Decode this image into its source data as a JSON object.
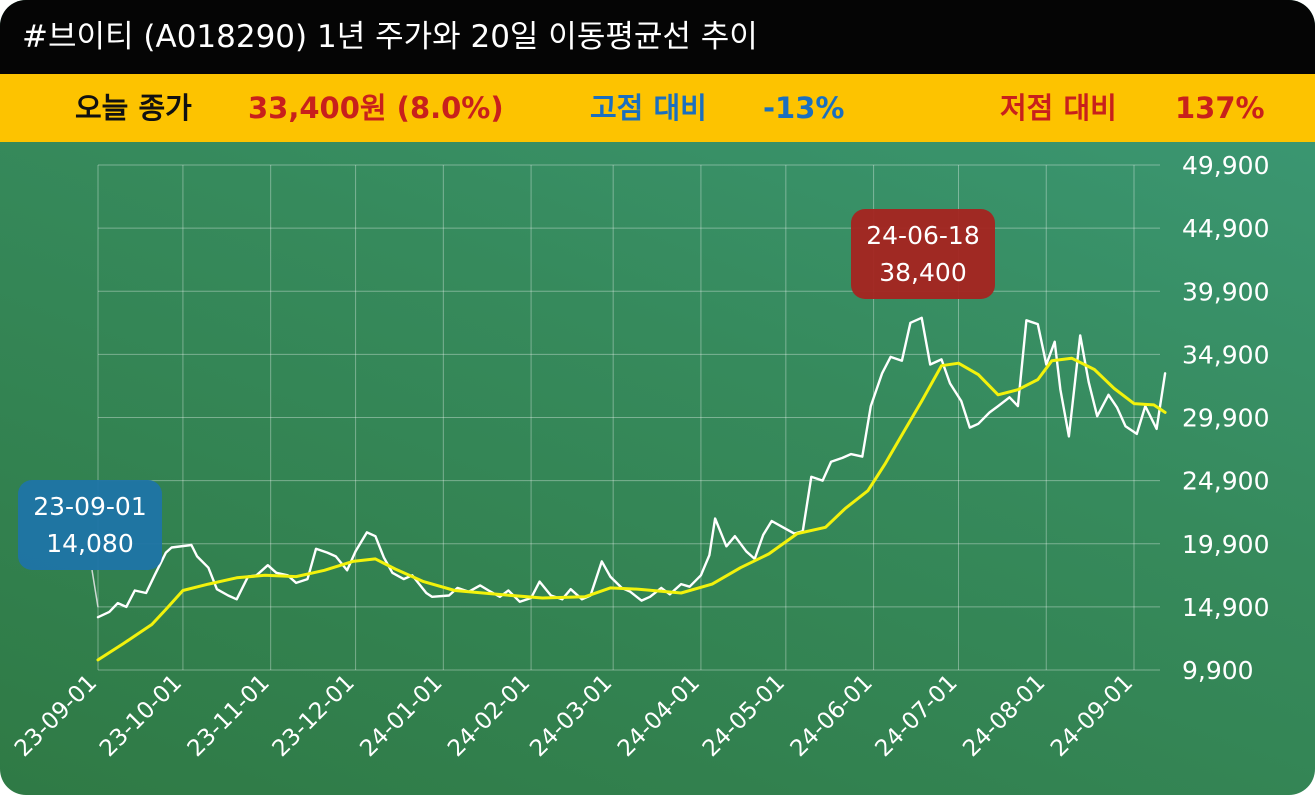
{
  "header": {
    "title": "#브이티 (A018290) 1년 주가와 20일 이동평균선 추이"
  },
  "summary": {
    "close_label": "오늘 종가",
    "close_value": "33,400원 (8.0%)",
    "high_label": "고점 대비",
    "high_value": "-13%",
    "low_label": "저점 대비",
    "low_value": "137%"
  },
  "colors": {
    "title_bg": "#050505",
    "info_bg": "#fdc300",
    "close_value": "#c8201c",
    "high": "#1a6fbf",
    "low": "#c8201c",
    "price_line": "#ffffff",
    "ma_line": "#f2f20c",
    "low_callout": "#1f74a6",
    "high_callout": "#a52420"
  },
  "chart_data": {
    "type": "line",
    "x_ticks": [
      "23-09-01",
      "23-10-01",
      "23-11-01",
      "23-12-01",
      "24-01-01",
      "24-02-01",
      "24-03-01",
      "24-04-01",
      "24-05-01",
      "24-06-01",
      "24-07-01",
      "24-08-01",
      "24-09-01"
    ],
    "y_ticks": [
      "49,900",
      "44,900",
      "39,900",
      "34,900",
      "29,900",
      "24,900",
      "19,900",
      "14,900",
      "9,900"
    ],
    "ylim": [
      9900,
      49900
    ],
    "grid": true,
    "series": [
      {
        "role": "price",
        "points": [
          [
            "2023-09-01",
            14080
          ],
          [
            "2023-09-05",
            14500
          ],
          [
            "2023-09-08",
            15200
          ],
          [
            "2023-09-11",
            14900
          ],
          [
            "2023-09-14",
            16200
          ],
          [
            "2023-09-18",
            16000
          ],
          [
            "2023-09-21",
            17400
          ],
          [
            "2023-09-25",
            19200
          ],
          [
            "2023-09-27",
            19600
          ],
          [
            "2023-10-04",
            19800
          ],
          [
            "2023-10-06",
            18900
          ],
          [
            "2023-10-10",
            18000
          ],
          [
            "2023-10-13",
            16300
          ],
          [
            "2023-10-17",
            15800
          ],
          [
            "2023-10-20",
            15500
          ],
          [
            "2023-10-24",
            17300
          ],
          [
            "2023-10-27",
            17400
          ],
          [
            "2023-10-31",
            18200
          ],
          [
            "2023-11-03",
            17600
          ],
          [
            "2023-11-07",
            17400
          ],
          [
            "2023-11-10",
            16800
          ],
          [
            "2023-11-14",
            17100
          ],
          [
            "2023-11-17",
            19500
          ],
          [
            "2023-11-21",
            19200
          ],
          [
            "2023-11-24",
            18900
          ],
          [
            "2023-11-28",
            17800
          ],
          [
            "2023-12-01",
            19300
          ],
          [
            "2023-12-05",
            20800
          ],
          [
            "2023-12-08",
            20500
          ],
          [
            "2023-12-11",
            18800
          ],
          [
            "2023-12-14",
            17600
          ],
          [
            "2023-12-18",
            17100
          ],
          [
            "2023-12-21",
            17400
          ],
          [
            "2023-12-26",
            16000
          ],
          [
            "2023-12-28",
            15700
          ],
          [
            "2024-01-03",
            15800
          ],
          [
            "2024-01-06",
            16400
          ],
          [
            "2024-01-10",
            16100
          ],
          [
            "2024-01-14",
            16600
          ],
          [
            "2024-01-17",
            16200
          ],
          [
            "2024-01-21",
            15700
          ],
          [
            "2024-01-24",
            16200
          ],
          [
            "2024-01-28",
            15300
          ],
          [
            "2024-02-01",
            15600
          ],
          [
            "2024-02-04",
            16900
          ],
          [
            "2024-02-08",
            15800
          ],
          [
            "2024-02-12",
            15500
          ],
          [
            "2024-02-15",
            16300
          ],
          [
            "2024-02-19",
            15500
          ],
          [
            "2024-02-22",
            15800
          ],
          [
            "2024-02-26",
            18500
          ],
          [
            "2024-02-29",
            17300
          ],
          [
            "2024-03-04",
            16400
          ],
          [
            "2024-03-07",
            16100
          ],
          [
            "2024-03-11",
            15400
          ],
          [
            "2024-03-14",
            15700
          ],
          [
            "2024-03-18",
            16400
          ],
          [
            "2024-03-21",
            15900
          ],
          [
            "2024-03-25",
            16700
          ],
          [
            "2024-03-28",
            16500
          ],
          [
            "2024-04-01",
            17400
          ],
          [
            "2024-04-04",
            19000
          ],
          [
            "2024-04-06",
            21900
          ],
          [
            "2024-04-10",
            19700
          ],
          [
            "2024-04-13",
            20500
          ],
          [
            "2024-04-17",
            19300
          ],
          [
            "2024-04-20",
            18700
          ],
          [
            "2024-04-23",
            20600
          ],
          [
            "2024-04-26",
            21700
          ],
          [
            "2024-04-30",
            21200
          ],
          [
            "2024-05-04",
            20700
          ],
          [
            "2024-05-07",
            20900
          ],
          [
            "2024-05-10",
            25200
          ],
          [
            "2024-05-14",
            24900
          ],
          [
            "2024-05-17",
            26400
          ],
          [
            "2024-05-21",
            26700
          ],
          [
            "2024-05-24",
            27000
          ],
          [
            "2024-05-28",
            26800
          ],
          [
            "2024-05-31",
            30800
          ],
          [
            "2024-06-04",
            33400
          ],
          [
            "2024-06-07",
            34700
          ],
          [
            "2024-06-11",
            34400
          ],
          [
            "2024-06-14",
            37400
          ],
          [
            "2024-06-18",
            37800
          ],
          [
            "2024-06-21",
            34100
          ],
          [
            "2024-06-25",
            34500
          ],
          [
            "2024-06-28",
            32600
          ],
          [
            "2024-07-02",
            31200
          ],
          [
            "2024-07-05",
            29100
          ],
          [
            "2024-07-08",
            29400
          ],
          [
            "2024-07-12",
            30300
          ],
          [
            "2024-07-15",
            30800
          ],
          [
            "2024-07-19",
            31500
          ],
          [
            "2024-07-22",
            30800
          ],
          [
            "2024-07-25",
            37600
          ],
          [
            "2024-07-29",
            37300
          ],
          [
            "2024-08-01",
            34100
          ],
          [
            "2024-08-04",
            35900
          ],
          [
            "2024-08-06",
            32100
          ],
          [
            "2024-08-09",
            28400
          ],
          [
            "2024-08-13",
            36400
          ],
          [
            "2024-08-16",
            32700
          ],
          [
            "2024-08-19",
            30000
          ],
          [
            "2024-08-23",
            31700
          ],
          [
            "2024-08-26",
            30700
          ],
          [
            "2024-08-29",
            29200
          ],
          [
            "2024-09-02",
            28600
          ],
          [
            "2024-09-05",
            30800
          ],
          [
            "2024-09-09",
            29000
          ],
          [
            "2024-09-12",
            33400
          ]
        ]
      },
      {
        "role": "ma20",
        "points": [
          [
            "2023-09-01",
            10700
          ],
          [
            "2023-09-10",
            12000
          ],
          [
            "2023-09-20",
            13500
          ],
          [
            "2023-09-25",
            14700
          ],
          [
            "2023-10-01",
            16200
          ],
          [
            "2023-10-10",
            16700
          ],
          [
            "2023-10-20",
            17200
          ],
          [
            "2023-10-30",
            17400
          ],
          [
            "2023-11-10",
            17300
          ],
          [
            "2023-11-20",
            17800
          ],
          [
            "2023-11-30",
            18500
          ],
          [
            "2023-12-08",
            18700
          ],
          [
            "2023-12-15",
            17900
          ],
          [
            "2023-12-25",
            16900
          ],
          [
            "2024-01-05",
            16200
          ],
          [
            "2024-01-20",
            15900
          ],
          [
            "2024-02-05",
            15600
          ],
          [
            "2024-02-20",
            15700
          ],
          [
            "2024-02-29",
            16400
          ],
          [
            "2024-03-10",
            16300
          ],
          [
            "2024-03-25",
            16000
          ],
          [
            "2024-04-05",
            16700
          ],
          [
            "2024-04-15",
            18000
          ],
          [
            "2024-04-25",
            19100
          ],
          [
            "2024-05-05",
            20700
          ],
          [
            "2024-05-15",
            21200
          ],
          [
            "2024-05-22",
            22700
          ],
          [
            "2024-05-30",
            24100
          ],
          [
            "2024-06-05",
            26200
          ],
          [
            "2024-06-12",
            28900
          ],
          [
            "2024-06-18",
            31200
          ],
          [
            "2024-06-25",
            34000
          ],
          [
            "2024-07-01",
            34200
          ],
          [
            "2024-07-08",
            33300
          ],
          [
            "2024-07-15",
            31700
          ],
          [
            "2024-07-22",
            32100
          ],
          [
            "2024-07-29",
            32900
          ],
          [
            "2024-08-03",
            34400
          ],
          [
            "2024-08-10",
            34600
          ],
          [
            "2024-08-18",
            33700
          ],
          [
            "2024-08-25",
            32200
          ],
          [
            "2024-09-01",
            31000
          ],
          [
            "2024-09-08",
            30900
          ],
          [
            "2024-09-12",
            30300
          ]
        ]
      }
    ],
    "annotations": [
      {
        "role": "low",
        "date": "2023-09-01",
        "value": 14080,
        "label_date": "23-09-01",
        "label_value": "14,080"
      },
      {
        "role": "high",
        "date": "2024-06-18",
        "value": 38400,
        "label_date": "24-06-18",
        "label_value": "38,400"
      }
    ]
  }
}
